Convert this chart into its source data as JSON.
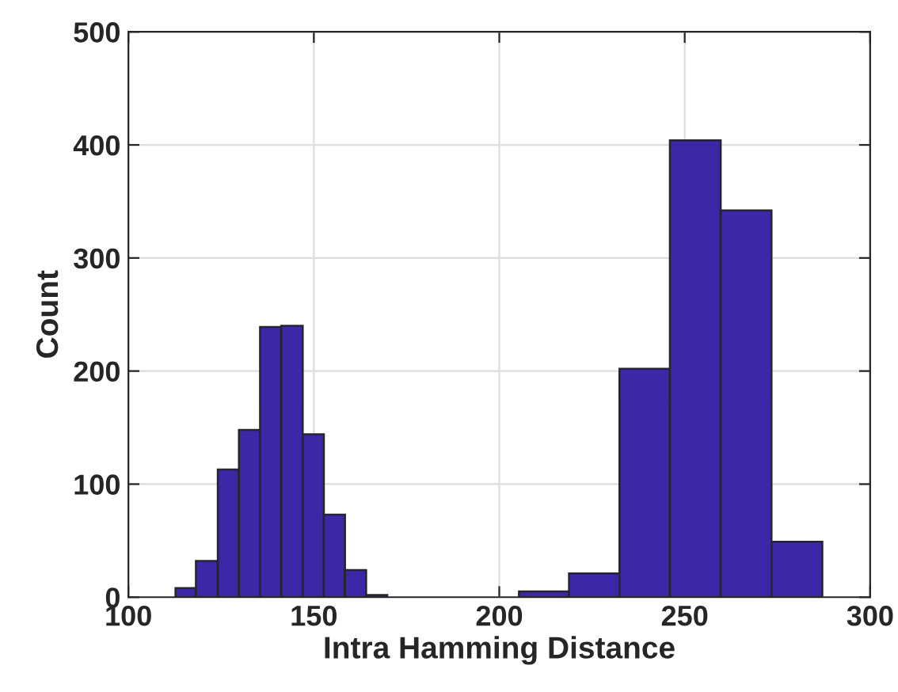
{
  "chart_data": {
    "type": "histogram",
    "xlabel": "Intra Hamming Distance",
    "ylabel": "Count",
    "bins": [
      112.7,
      118.2,
      124.1,
      129.8,
      135.5,
      141.2,
      147.0,
      152.7,
      158.4,
      164.1,
      169.8,
      205.3,
      218.8,
      232.4,
      246.0,
      259.7,
      273.4,
      287.1
    ],
    "values": [
      8,
      32,
      113,
      148,
      239,
      240,
      144,
      73,
      24,
      2,
      null,
      5,
      21,
      202,
      404,
      342,
      49
    ],
    "color": "#3a28a6",
    "xlim": [
      100,
      300
    ],
    "xticks": [
      100,
      150,
      200,
      250,
      300
    ],
    "ylim": [
      0,
      500
    ],
    "yticks": [
      0,
      100,
      200,
      300,
      400,
      500
    ],
    "grid": true
  }
}
